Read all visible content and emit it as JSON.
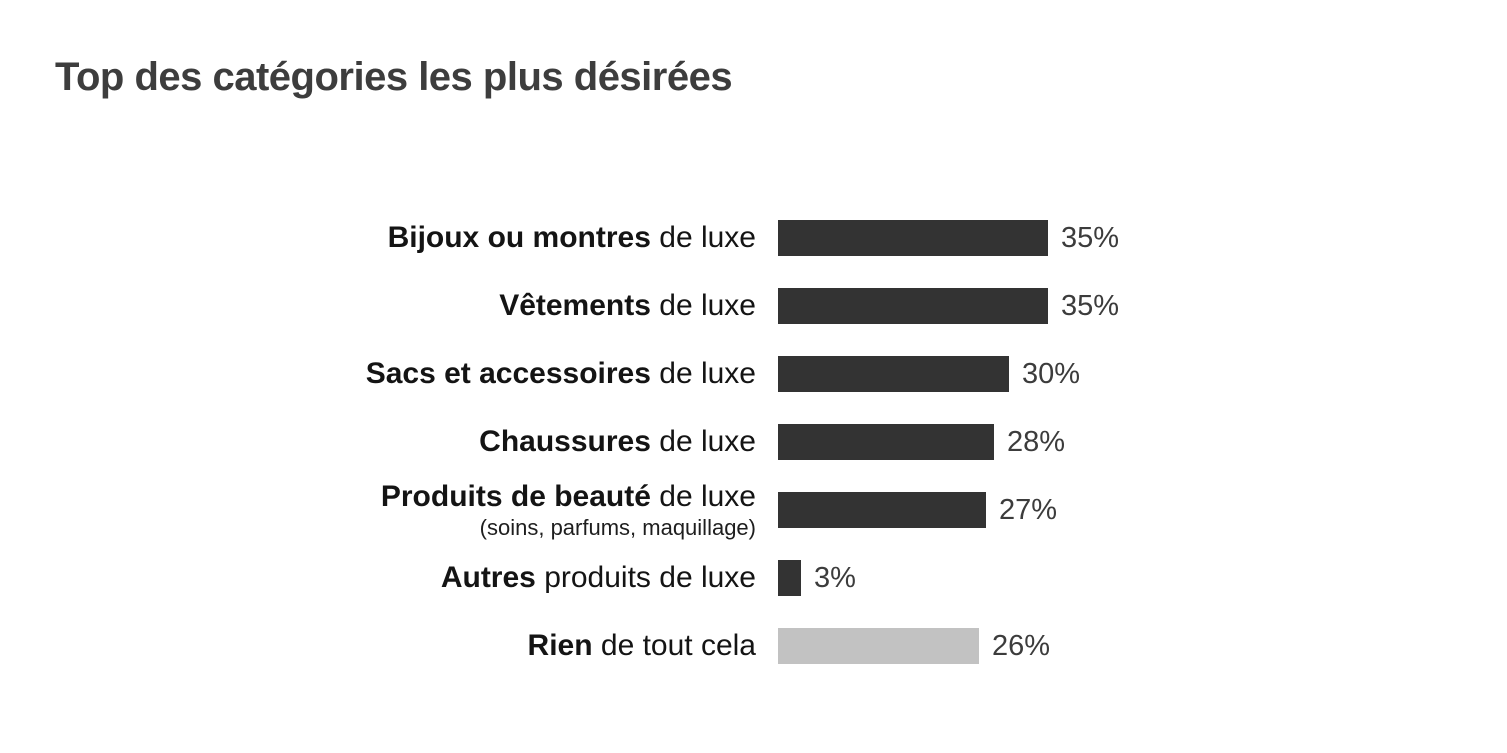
{
  "title": "Top des catégories les plus désirées",
  "colors": {
    "bar_dark": "#333333",
    "bar_light": "#c2c2c2",
    "title_text": "#3d3d3d",
    "label_text": "#141414",
    "value_text": "#3c3c3c",
    "background": "#ffffff"
  },
  "chart_data": {
    "type": "bar",
    "orientation": "horizontal",
    "title": "Top des catégories les plus désirées",
    "xlabel": "",
    "ylabel": "",
    "unit": "%",
    "xlim": [
      0,
      35
    ],
    "grid": false,
    "legend": false,
    "categories": [
      "Bijoux ou montres de luxe",
      "Vêtements de luxe",
      "Sacs et accessoires de luxe",
      "Chaussures de luxe",
      "Produits de beauté de luxe (soins, parfums, maquillage)",
      "Autres produits de luxe",
      "Rien de tout cela"
    ],
    "values": [
      35,
      35,
      30,
      28,
      27,
      3,
      26
    ],
    "rows": [
      {
        "label_bold": "Bijoux ou montres",
        "label_regular": " de luxe",
        "sub_label": "",
        "value": 35,
        "value_label": "35%",
        "color": "#333333"
      },
      {
        "label_bold": "Vêtements",
        "label_regular": " de luxe",
        "sub_label": "",
        "value": 35,
        "value_label": "35%",
        "color": "#333333"
      },
      {
        "label_bold": "Sacs et accessoires",
        "label_regular": " de luxe",
        "sub_label": "",
        "value": 30,
        "value_label": "30%",
        "color": "#333333"
      },
      {
        "label_bold": "Chaussures",
        "label_regular": " de luxe",
        "sub_label": "",
        "value": 28,
        "value_label": "28%",
        "color": "#333333"
      },
      {
        "label_bold": "Produits de beauté",
        "label_regular": " de luxe",
        "sub_label": "(soins, parfums, maquillage)",
        "value": 27,
        "value_label": "27%",
        "color": "#333333"
      },
      {
        "label_bold": "Autres",
        "label_regular": " produits de luxe",
        "sub_label": "",
        "value": 3,
        "value_label": "3%",
        "color": "#333333"
      },
      {
        "label_bold": "Rien",
        "label_regular": " de tout cela",
        "sub_label": "",
        "value": 26,
        "value_label": "26%",
        "color": "#c2c2c2"
      }
    ]
  }
}
